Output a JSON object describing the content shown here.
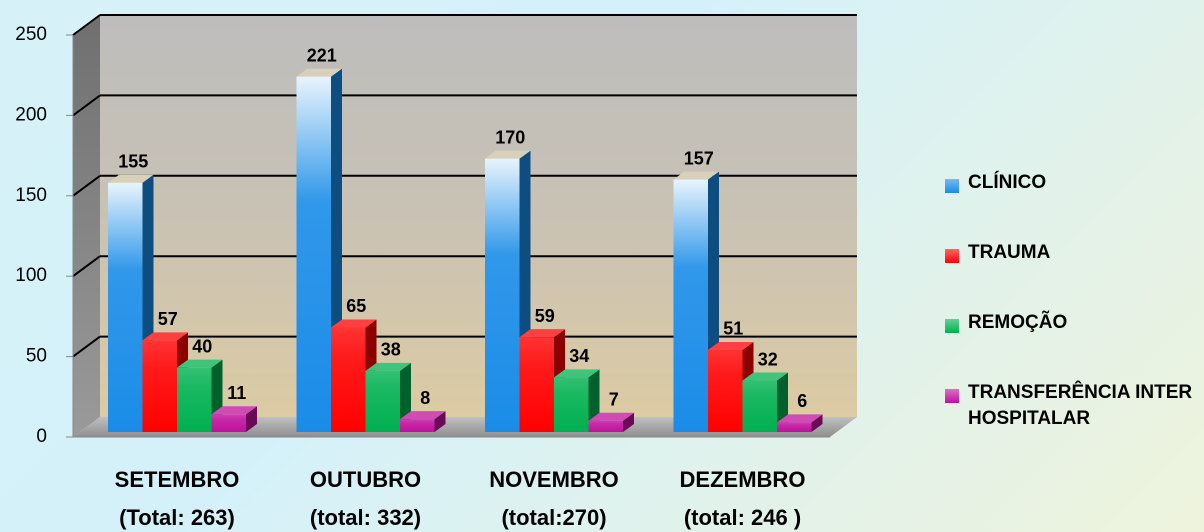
{
  "chart_data": {
    "type": "bar3d",
    "categories": [
      [
        "SETEMBRO",
        "(Total: 263)"
      ],
      [
        "OUTUBRO",
        "(total: 332)"
      ],
      [
        "NOVEMBRO",
        "(total:270)"
      ],
      [
        "DEZEMBRO",
        "(total: 246 )"
      ]
    ],
    "series": [
      {
        "name": "CLÍNICO",
        "color": "#1a8ce8",
        "values": [
          155,
          221,
          170,
          157
        ]
      },
      {
        "name": "TRAUMA",
        "color": "#ff0000",
        "values": [
          57,
          65,
          59,
          51
        ]
      },
      {
        "name": "REMOÇÃO",
        "color": "#00b050",
        "values": [
          40,
          38,
          34,
          32
        ]
      },
      {
        "name": "TRANSFERÊNCIA INTER HOSPITALAR",
        "color": "#c0109c",
        "values": [
          11,
          8,
          7,
          6
        ]
      }
    ],
    "ylim": [
      0,
      250
    ],
    "yticks": [
      0,
      50,
      100,
      150,
      200,
      250
    ],
    "grid": true,
    "legend": "right"
  }
}
